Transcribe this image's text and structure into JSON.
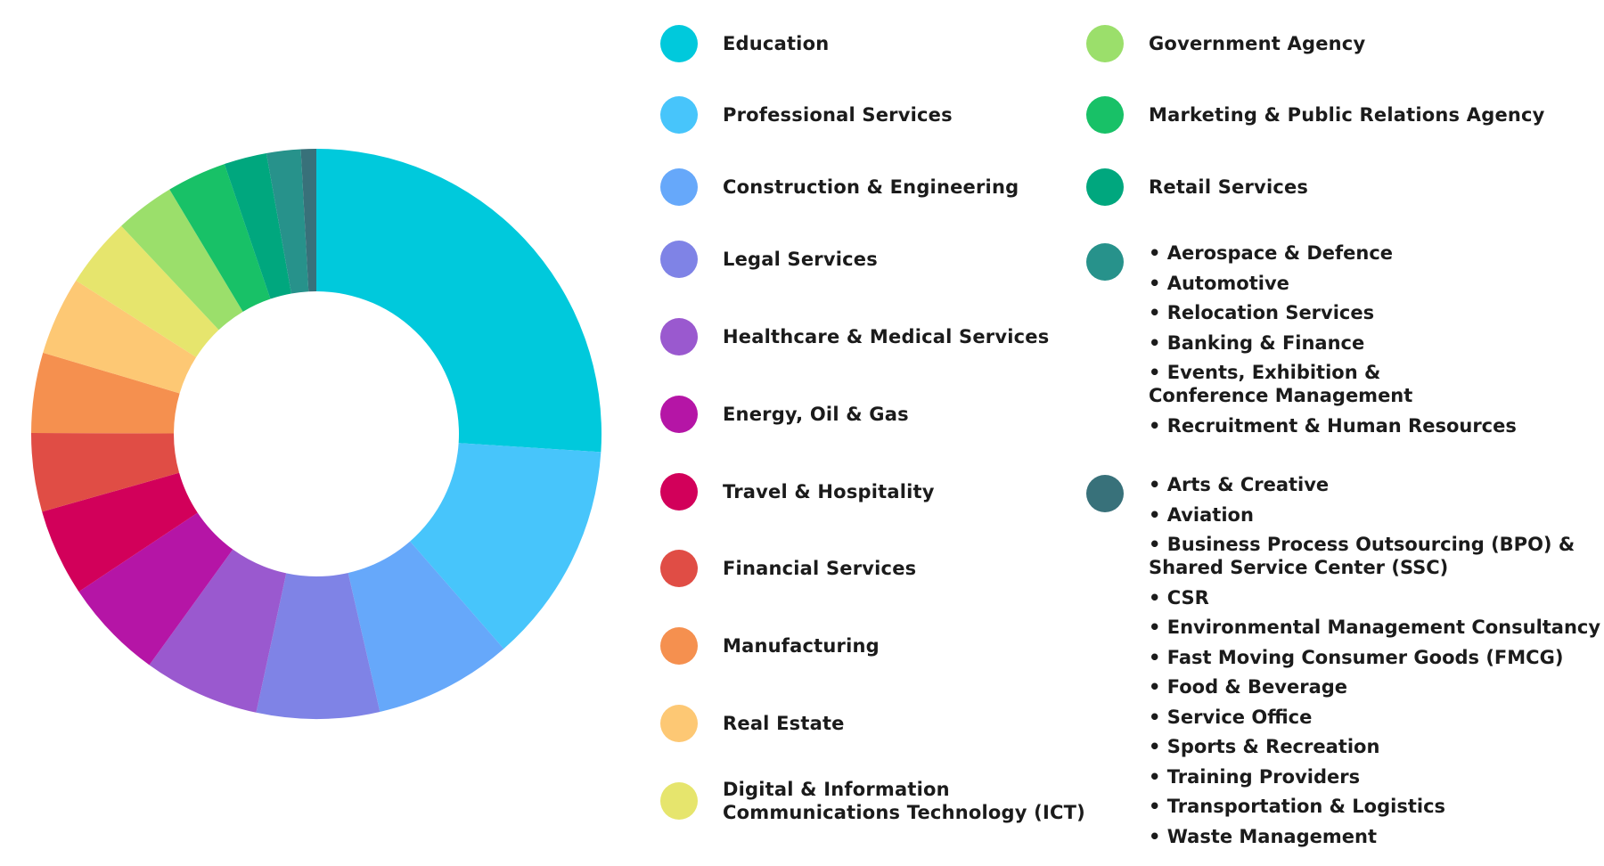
{
  "chart_data": {
    "type": "pie",
    "title": "",
    "slices": [
      {
        "label": "Education",
        "value": 26.9,
        "color": "#00c9dc"
      },
      {
        "label": "Professional Services",
        "value": 13.0,
        "color": "#47c5fb"
      },
      {
        "label": "Construction & Engineering",
        "value": 8.1,
        "color": "#66a8fa"
      },
      {
        "label": "Legal Services",
        "value": 7.2,
        "color": "#7f83e6"
      },
      {
        "label": "Healthcare & Medical Services",
        "value": 6.8,
        "color": "#9a59cf"
      },
      {
        "label": "Energy, Oil & Gas",
        "value": 5.9,
        "color": "#b515a6"
      },
      {
        "label": "Travel & Hospitality",
        "value": 5.1,
        "color": "#d2005a"
      },
      {
        "label": "Financial Services",
        "value": 4.6,
        "color": "#e04d45"
      },
      {
        "label": "Manufacturing",
        "value": 4.7,
        "color": "#f5904f"
      },
      {
        "label": "Real Estate",
        "value": 4.6,
        "color": "#fdc874"
      },
      {
        "label": "Digital & Information\nCommunications Technology (ICT)",
        "value": 4.1,
        "color": "#e6e56d"
      },
      {
        "label": "Government Agency",
        "value": 3.5,
        "color": "#9bdf6b"
      },
      {
        "label": "Marketing & Public Relations Agency",
        "value": 3.5,
        "color": "#18c167"
      },
      {
        "label": "Retail Services",
        "value": 2.5,
        "color": "#00a77e"
      },
      {
        "label": "Aerospace & Defence / Automotive / Relocation Services / Banking & Finance / Events, Exhibition & Conference Management / Recruitment & Human Resources",
        "value": 2.0,
        "color": "#27928b"
      },
      {
        "label": "Arts & Creative / Aviation / BPO & SSC / CSR / ... / Waste Management",
        "value": 0.9,
        "color": "#38717a"
      }
    ]
  },
  "legend": {
    "left": [
      {
        "label": "Education",
        "color": "#00c9dc"
      },
      {
        "label": "Professional Services",
        "color": "#47c5fb"
      },
      {
        "label": "Construction & Engineering",
        "color": "#66a8fa"
      },
      {
        "label": "Legal Services",
        "color": "#7f83e6"
      },
      {
        "label": "Healthcare & Medical Services",
        "color": "#9a59cf"
      },
      {
        "label": "Energy, Oil & Gas",
        "color": "#b515a6"
      },
      {
        "label": "Travel & Hospitality",
        "color": "#d2005a"
      },
      {
        "label": "Financial Services",
        "color": "#e04d45"
      },
      {
        "label": "Manufacturing",
        "color": "#f5904f"
      },
      {
        "label": "Real Estate",
        "color": "#fdc874"
      },
      {
        "label": "Digital & Information\nCommunications Technology (ICT)",
        "color": "#e6e56d"
      }
    ],
    "right": [
      {
        "label": "Government Agency",
        "color": "#9bdf6b"
      },
      {
        "label": "Marketing & Public Relations Agency",
        "color": "#18c167"
      },
      {
        "label": "Retail Services",
        "color": "#00a77e"
      }
    ],
    "group1": {
      "color": "#27928b",
      "items": [
        "• Aerospace & Defence",
        "• Automotive",
        "• Relocation Services",
        "• Banking & Finance",
        "• Events, Exhibition &\n  Conference Management",
        "• Recruitment & Human Resources"
      ]
    },
    "group2": {
      "color": "#38717a",
      "items": [
        "• Arts & Creative",
        "• Aviation",
        "• Business Process Outsourcing (BPO) &\n  Shared Service Center (SSC)",
        "• CSR",
        "• Environmental Management Consultancy",
        "• Fast Moving Consumer Goods (FMCG)",
        "• Food & Beverage",
        "• Service Office",
        "• Sports & Recreation",
        "• Training Providers",
        "• Transportation & Logistics",
        "• Waste Management"
      ]
    }
  }
}
